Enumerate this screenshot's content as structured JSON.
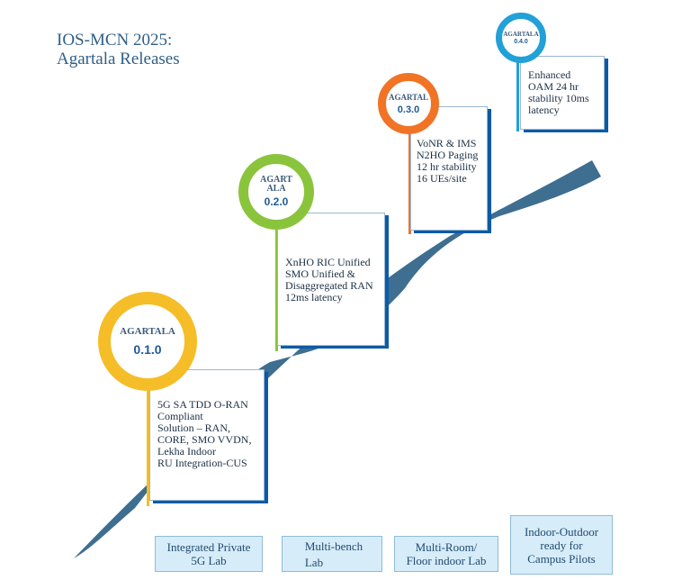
{
  "title": {
    "line1": "IOS-MCN 2025:",
    "line2": "Agartala Releases"
  },
  "colors": {
    "road": "#3e6e90",
    "card_shadow": "#0d5aa7",
    "yellow": "#f5bd27",
    "green": "#8ac43c",
    "orange": "#f07326",
    "sky": "#22a0d8",
    "stage_fill": "#d6ecf8"
  },
  "releases": [
    {
      "name": "AGARTALA",
      "version": "0.1.0",
      "ring_color": "#f5bd27",
      "lines": [
        "5G SA TDD O-RAN",
        "Compliant",
        "Solution – RAN,",
        "CORE, SMO VVDN,",
        "Lekha Indoor",
        "RU Integration-CUS"
      ]
    },
    {
      "name": "AGART ALA",
      "version": "0.2.0",
      "ring_color": "#8ac43c",
      "lines": [
        "XnHO RIC Unified",
        "SMO Unified &",
        "Disaggregated RAN",
        "12ms latency"
      ]
    },
    {
      "name": "AGARTAL",
      "version": "0.3.0",
      "ring_color": "#f07326",
      "lines": [
        "VoNR & IMS",
        "N2HO Paging",
        "12 hr stability",
        "16 UEs/site"
      ]
    },
    {
      "name": "AGARTALA",
      "version": "0.4.0",
      "ring_color": "#22a0d8",
      "lines": [
        "Enhanced",
        "OAM 24 hr",
        "stability 10ms",
        "latency"
      ]
    }
  ],
  "stages": [
    {
      "line1": "Integrated Private",
      "line2": "5G Lab"
    },
    {
      "line1": "Multi-bench",
      "line2": "Lab"
    },
    {
      "line1": "Multi-Room/",
      "line2": "Floor indoor Lab"
    },
    {
      "line1": "Indoor-Outdoor",
      "line2": "ready for",
      "line3": "Campus Pilots"
    }
  ]
}
